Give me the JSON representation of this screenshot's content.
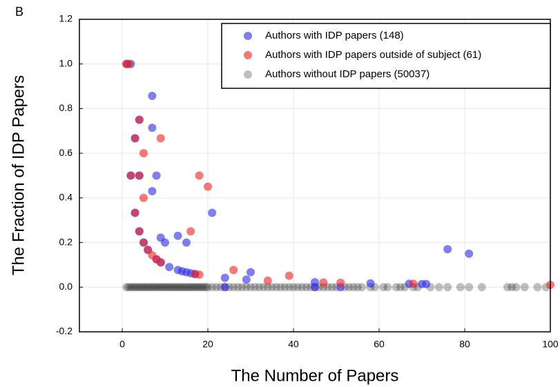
{
  "chart_data": {
    "type": "scatter",
    "panel_label": "B",
    "x_label": "The Number of Papers",
    "y_label": "The Fraction of IDP Papers",
    "xlim": [
      -10,
      100
    ],
    "ylim": [
      -0.2,
      1.2
    ],
    "xticks": [
      0,
      20,
      40,
      60,
      80,
      100
    ],
    "yticks": [
      -0.2,
      {
        "value": 0,
        "label": "0.0"
      },
      0.2,
      0.4,
      0.6,
      0.8,
      {
        "value": 1,
        "label": "1.0"
      },
      1.2
    ],
    "grid": true,
    "legend": "upper right",
    "series": [
      {
        "name": "Authors with IDP papers (148)",
        "color": "#2a2ae8",
        "alpha": 0.6,
        "x": [
          1,
          2,
          7,
          7,
          8,
          7,
          9,
          10,
          11,
          13,
          15,
          13,
          14,
          15,
          16,
          17,
          21,
          24,
          29,
          30,
          45,
          58,
          67,
          70,
          71,
          76,
          81,
          2,
          4,
          4,
          5,
          6,
          8,
          9,
          3,
          4,
          3,
          24,
          45,
          51
        ],
        "values": [
          1.0,
          1.0,
          0.857,
          0.714,
          0.5,
          0.43,
          0.222,
          0.2,
          0.09,
          0.23,
          0.2,
          0.077,
          0.071,
          0.067,
          0.0625,
          0.059,
          0.333,
          0.042,
          0.034,
          0.067,
          0.022,
          0.017,
          0.015,
          0.014,
          0.014,
          0.17,
          0.15,
          0.5,
          0.5,
          0.25,
          0.2,
          0.167,
          0.125,
          0.111,
          0.333,
          0.75,
          0.667,
          0,
          0,
          0
        ]
      },
      {
        "name": "Authors with IDP papers outside of subject (61)",
        "color": "#f02020",
        "alpha": 0.6,
        "x": [
          1,
          1.5,
          4,
          3,
          5,
          9,
          2,
          4,
          5,
          3,
          4,
          5,
          6,
          7,
          8,
          9,
          18,
          20,
          16,
          17,
          18,
          26,
          34,
          39,
          47,
          51,
          68,
          100
        ],
        "values": [
          1.0,
          1.0,
          0.75,
          0.667,
          0.6,
          0.667,
          0.5,
          0.5,
          0.4,
          0.333,
          0.25,
          0.2,
          0.167,
          0.143,
          0.125,
          0.111,
          0.5,
          0.45,
          0.25,
          0.059,
          0.056,
          0.077,
          0.029,
          0.051,
          0.021,
          0.02,
          0.015,
          0.01
        ]
      },
      {
        "name": "Authors without IDP papers (50037)",
        "color": "#000000",
        "alpha": 0.25,
        "x": [
          1,
          1.5,
          2,
          2.5,
          3,
          3.5,
          4,
          4.5,
          5,
          5.5,
          6,
          6.5,
          7,
          7.5,
          8,
          8.5,
          9,
          9.5,
          10,
          10.5,
          11,
          11.5,
          12,
          12.5,
          13,
          13.5,
          14,
          14.5,
          15,
          15.5,
          16,
          16.5,
          17,
          17.5,
          18,
          18.5,
          19,
          19.5,
          20,
          21,
          22,
          23,
          24,
          25,
          26,
          27,
          28,
          29,
          30,
          31,
          32,
          33,
          34,
          35,
          36,
          37,
          38,
          39,
          40,
          41,
          42,
          43,
          44,
          45,
          46,
          47,
          48,
          49,
          50,
          52,
          53,
          54,
          55,
          56,
          58,
          59,
          61,
          62,
          64,
          65,
          66,
          68,
          69,
          72,
          74,
          76,
          79,
          81,
          84,
          90,
          91,
          92,
          94,
          97,
          99
        ],
        "values": [
          0,
          0,
          0,
          0,
          0,
          0,
          0,
          0,
          0,
          0,
          0,
          0,
          0,
          0,
          0,
          0,
          0,
          0,
          0,
          0,
          0,
          0,
          0,
          0,
          0,
          0,
          0,
          0,
          0,
          0,
          0,
          0,
          0,
          0,
          0,
          0,
          0,
          0,
          0,
          0,
          0,
          0,
          0,
          0,
          0,
          0,
          0,
          0,
          0,
          0,
          0,
          0,
          0,
          0,
          0,
          0,
          0,
          0,
          0,
          0,
          0,
          0,
          0,
          0,
          0,
          0,
          0,
          0,
          0,
          0,
          0,
          0,
          0,
          0,
          0,
          0,
          0,
          0,
          0,
          0,
          0,
          0,
          0,
          0,
          0,
          0,
          0,
          0,
          0,
          0,
          0,
          0,
          0,
          0,
          0
        ]
      }
    ]
  }
}
